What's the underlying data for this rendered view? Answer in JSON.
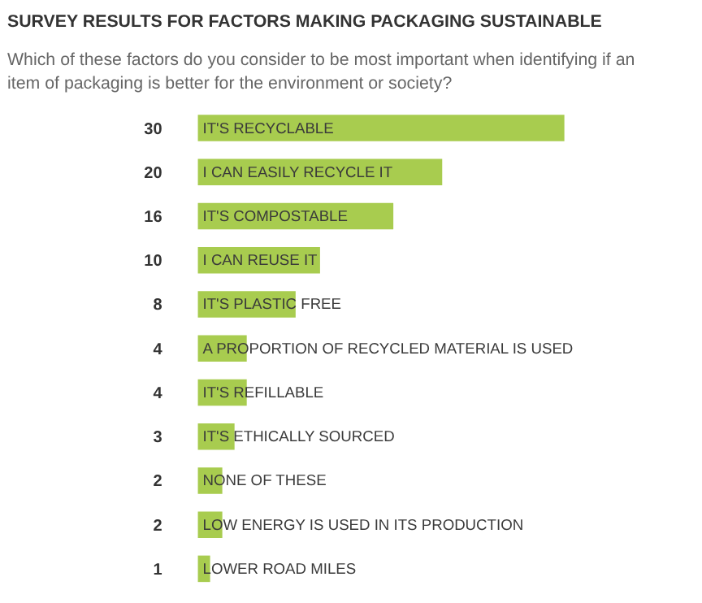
{
  "chart_data": {
    "type": "bar",
    "orientation": "horizontal",
    "title": "SURVEY RESULTS FOR FACTORS MAKING PACKAGING SUSTAINABLE",
    "subtitle": "Which of these factors do you consider to be most important when identifying if an item of packaging is better for the environment or society?",
    "categories": [
      "IT'S RECYCLABLE",
      "I CAN EASILY RECYCLE IT",
      "IT'S COMPOSTABLE",
      "I CAN REUSE IT",
      "IT'S PLASTIC FREE",
      "A PROPORTION OF RECYCLED MATERIAL IS USED",
      "IT'S REFILLABLE",
      "IT'S ETHICALLY SOURCED",
      "NONE OF THESE",
      "LOW ENERGY IS USED IN ITS PRODUCTION",
      "LOWER ROAD MILES"
    ],
    "values": [
      30,
      20,
      16,
      10,
      8,
      4,
      4,
      3,
      2,
      2,
      1
    ],
    "color": "#a8cc4f",
    "data_labels": true,
    "grid": false
  }
}
